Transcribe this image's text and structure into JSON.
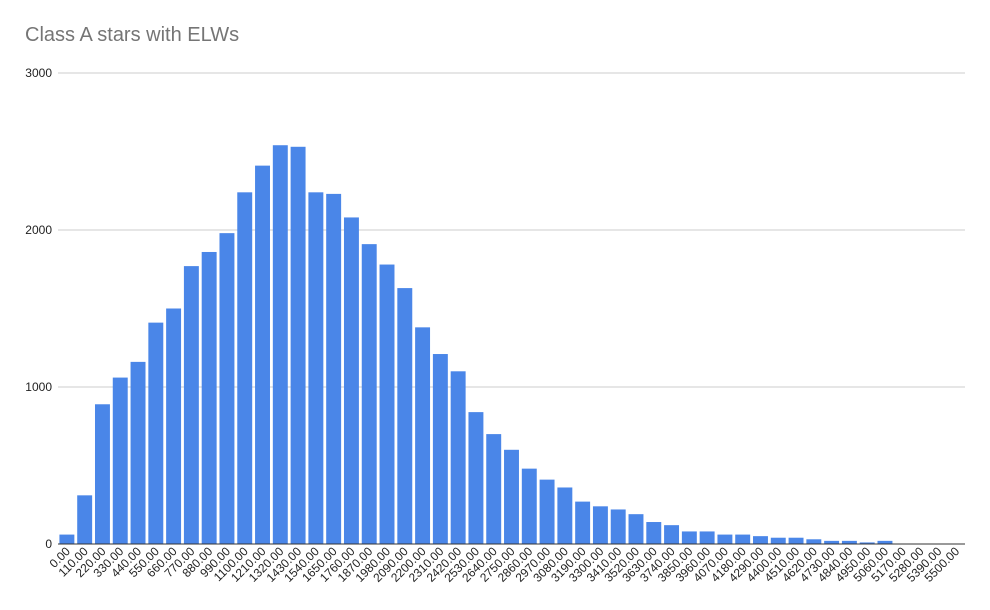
{
  "chart_data": {
    "type": "bar",
    "title": "Class A stars with ELWs",
    "xlabel": "",
    "ylabel": "",
    "ylim": [
      0,
      3000
    ],
    "y_ticks": [
      "0",
      "1000",
      "2000",
      "3000"
    ],
    "grid": true,
    "legend": "none",
    "bar_color": "#4a86e8",
    "categories": [
      "0.00",
      "110.00",
      "220.00",
      "330.00",
      "440.00",
      "550.00",
      "660.00",
      "770.00",
      "880.00",
      "990.00",
      "1100.00",
      "1210.00",
      "1320.00",
      "1430.00",
      "1540.00",
      "1650.00",
      "1760.00",
      "1870.00",
      "1980.00",
      "2090.00",
      "2200.00",
      "2310.00",
      "2420.00",
      "2530.00",
      "2640.00",
      "2750.00",
      "2860.00",
      "2970.00",
      "3080.00",
      "3190.00",
      "3300.00",
      "3410.00",
      "3520.00",
      "3630.00",
      "3740.00",
      "3850.00",
      "3960.00",
      "4070.00",
      "4180.00",
      "4290.00",
      "4400.00",
      "4510.00",
      "4620.00",
      "4730.00",
      "4840.00",
      "4950.00",
      "5060.00",
      "5170.00",
      "5280.00",
      "5390.00",
      "5500.00"
    ],
    "values": [
      60,
      310,
      890,
      1060,
      1160,
      1410,
      1500,
      1770,
      1860,
      1980,
      2240,
      2410,
      2540,
      2530,
      2240,
      2230,
      2080,
      1910,
      1780,
      1630,
      1380,
      1210,
      1100,
      840,
      700,
      600,
      480,
      410,
      360,
      270,
      240,
      220,
      190,
      140,
      120,
      80,
      80,
      60,
      60,
      50,
      40,
      40,
      30,
      20,
      20,
      10,
      20,
      0,
      0,
      0,
      0
    ]
  }
}
